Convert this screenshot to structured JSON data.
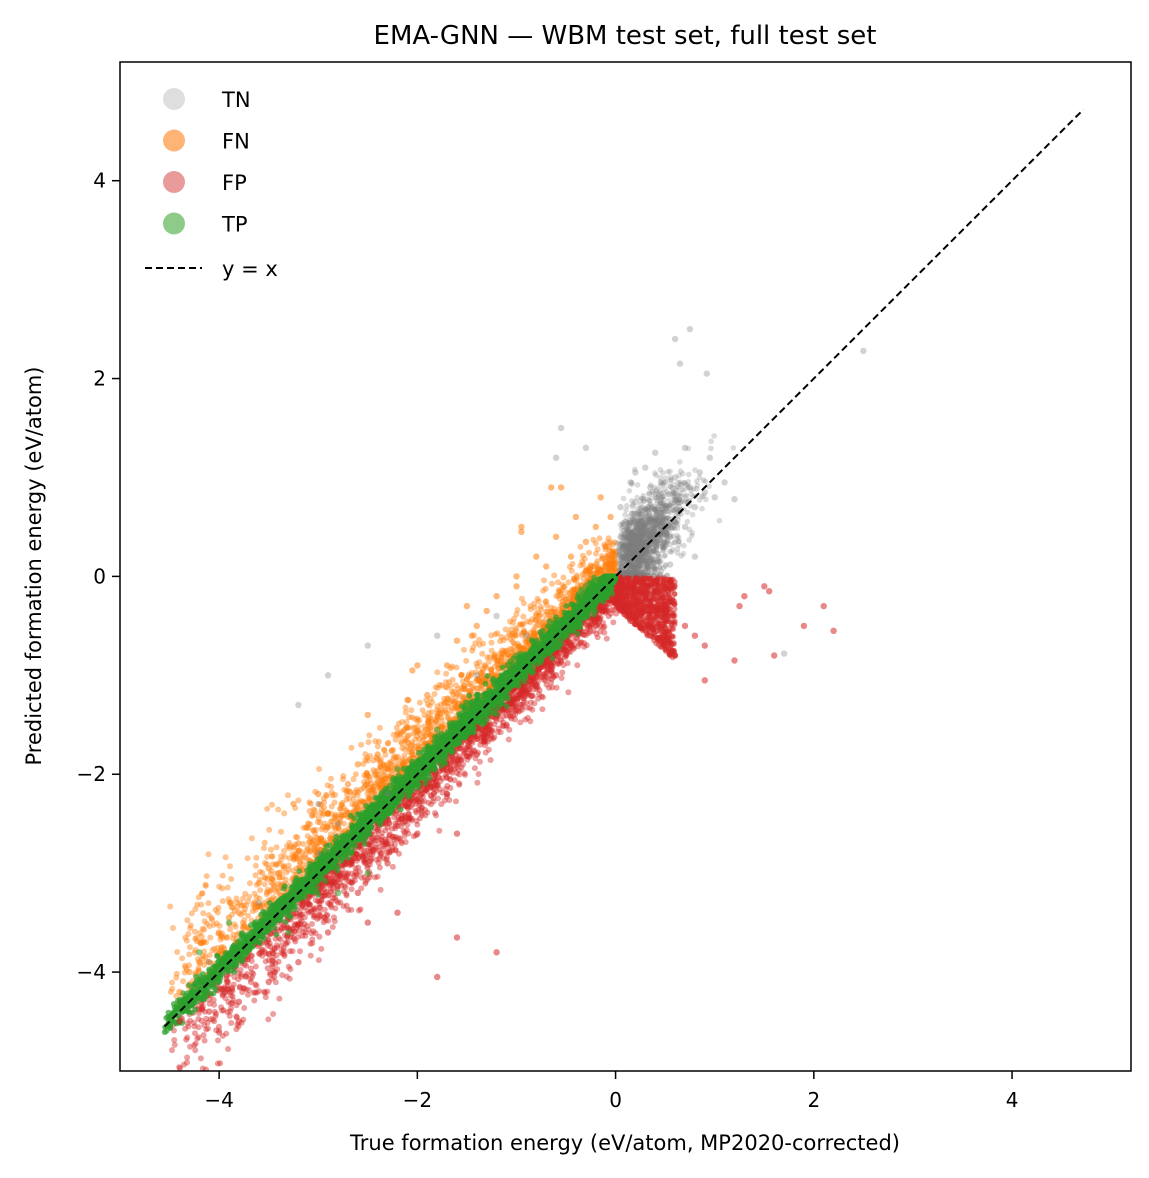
{
  "chart_data": {
    "type": "scatter",
    "title": "EMA-GNN — WBM test set, full test set",
    "xlabel": "True formation energy (eV/atom, MP2020-corrected)",
    "ylabel": "Predicted formation energy (eV/atom)",
    "xlim": [
      -5.0,
      5.2
    ],
    "ylim": [
      -5.0,
      5.2
    ],
    "xticks": [
      -4,
      -2,
      0,
      2,
      4
    ],
    "yticks": [
      -4,
      -2,
      0,
      2,
      4
    ],
    "xtick_labels": [
      "−4",
      "−2",
      "0",
      "2",
      "4"
    ],
    "ytick_labels": [
      "−4",
      "−2",
      "0",
      "2",
      "4"
    ],
    "grid": false,
    "legend": {
      "placement": "top-left",
      "entries": [
        {
          "label": "TN",
          "color": "#dedede",
          "marker": "circle"
        },
        {
          "label": "FN",
          "color": "#ffb375",
          "marker": "circle"
        },
        {
          "label": "FP",
          "color": "#e99a9b",
          "marker": "circle"
        },
        {
          "label": "TP",
          "color": "#8ecb88",
          "marker": "circle"
        },
        {
          "label": "y = x",
          "color": "#000000",
          "marker": "dashed-line"
        }
      ]
    },
    "reference_line": {
      "label": "y = x",
      "x": [
        -4.55,
        4.72
      ],
      "y": [
        -4.55,
        4.72
      ],
      "color": "#000000",
      "style": "dashed"
    },
    "series": [
      {
        "name": "TN",
        "color": "#7f7f7f",
        "description_points": [
          [
            0.05,
            0.05
          ],
          [
            0.1,
            0.2
          ],
          [
            0.2,
            0.1
          ],
          [
            0.15,
            0.35
          ],
          [
            0.3,
            0.25
          ],
          [
            0.25,
            0.5
          ],
          [
            0.4,
            0.45
          ],
          [
            0.35,
            0.15
          ],
          [
            0.5,
            0.3
          ],
          [
            0.45,
            0.6
          ],
          [
            0.55,
            0.4
          ],
          [
            0.6,
            0.55
          ],
          [
            0.7,
            0.5
          ],
          [
            0.65,
            0.75
          ],
          [
            0.8,
            0.7
          ],
          [
            0.75,
            0.9
          ],
          [
            0.9,
            0.85
          ],
          [
            1.0,
            0.8
          ],
          [
            0.2,
            0.75
          ],
          [
            0.35,
            0.9
          ],
          [
            0.5,
            0.95
          ],
          [
            0.1,
            0.55
          ],
          [
            0.05,
            0.4
          ],
          [
            0.3,
            1.1
          ],
          [
            0.6,
            1.0
          ],
          [
            0.85,
            1.05
          ],
          [
            1.1,
            0.95
          ],
          [
            1.2,
            0.78
          ],
          [
            0.4,
            1.25
          ],
          [
            0.7,
            1.3
          ],
          [
            0.95,
            1.2
          ],
          [
            0.6,
            2.4
          ],
          [
            0.75,
            2.5
          ],
          [
            0.65,
            2.15
          ],
          [
            0.92,
            2.05
          ],
          [
            2.5,
            2.28
          ],
          [
            0.05,
            0.7
          ],
          [
            0.15,
            0.95
          ],
          [
            -0.55,
            1.5
          ],
          [
            -0.3,
            1.3
          ],
          [
            -0.6,
            1.2
          ],
          [
            0.2,
            1.05
          ],
          [
            1.7,
            -0.78
          ],
          [
            -2.5,
            -0.7
          ],
          [
            -2.9,
            -1.0
          ],
          [
            -3.2,
            -1.3
          ],
          [
            -3.0,
            -2.3
          ],
          [
            -2.3,
            -2.2
          ],
          [
            -1.8,
            -0.6
          ],
          [
            -1.4,
            -1.0
          ],
          [
            -0.9,
            -0.6
          ],
          [
            -1.2,
            -0.4
          ],
          [
            -3.0,
            -2.8
          ],
          [
            -4.1,
            -3.9
          ],
          [
            -3.6,
            -3.3
          ],
          [
            -2.8,
            -2.5
          ],
          [
            0.45,
            0.02
          ],
          [
            0.55,
            0.12
          ],
          [
            0.25,
            0.02
          ],
          [
            0.8,
            0.2
          ]
        ]
      },
      {
        "name": "FN",
        "color": "#ff7f0e",
        "description_points": [
          [
            -0.05,
            0.6
          ],
          [
            -0.2,
            0.5
          ],
          [
            -0.1,
            0.3
          ],
          [
            -0.3,
            0.35
          ],
          [
            -0.4,
            0.6
          ],
          [
            -0.15,
            0.8
          ],
          [
            -0.55,
            0.9
          ],
          [
            -0.6,
            0.4
          ],
          [
            -0.8,
            0.2
          ],
          [
            -0.95,
            0.45
          ],
          [
            -1.0,
            -0.1
          ],
          [
            -1.2,
            -0.2
          ],
          [
            -1.4,
            -0.5
          ],
          [
            -1.5,
            -0.3
          ],
          [
            -1.7,
            -0.9
          ],
          [
            -1.9,
            -1.2
          ],
          [
            -2.0,
            -0.9
          ],
          [
            -2.2,
            -1.6
          ],
          [
            -2.4,
            -1.8
          ],
          [
            -2.5,
            -1.4
          ],
          [
            -2.7,
            -2.1
          ],
          [
            -2.9,
            -2.4
          ],
          [
            -3.0,
            -2.2
          ],
          [
            -3.2,
            -2.7
          ],
          [
            -3.4,
            -3.0
          ],
          [
            -3.6,
            -3.1
          ],
          [
            -3.8,
            -3.4
          ],
          [
            -4.0,
            -3.6
          ],
          [
            -4.2,
            -3.9
          ],
          [
            -4.4,
            -4.2
          ],
          [
            -0.95,
            0.5
          ],
          [
            -0.65,
            0.9
          ],
          [
            -1.45,
            -0.6
          ],
          [
            -2.05,
            -0.95
          ],
          [
            -3.25,
            -2.3
          ],
          [
            -1.0,
            0.0
          ],
          [
            -0.3,
            0.05
          ],
          [
            -0.1,
            0.15
          ],
          [
            -0.45,
            0.2
          ],
          [
            -0.7,
            0.1
          ],
          [
            -1.3,
            -0.35
          ],
          [
            -1.6,
            -0.65
          ],
          [
            -2.1,
            -1.25
          ],
          [
            -2.6,
            -1.9
          ],
          [
            -3.1,
            -2.5
          ],
          [
            -3.5,
            -2.95
          ],
          [
            -3.9,
            -3.45
          ],
          [
            -4.3,
            -4.0
          ]
        ]
      },
      {
        "name": "FP",
        "color": "#d62728",
        "description_points": [
          [
            0.05,
            -0.05
          ],
          [
            0.1,
            -0.2
          ],
          [
            0.2,
            -0.1
          ],
          [
            0.3,
            -0.3
          ],
          [
            0.4,
            -0.15
          ],
          [
            0.5,
            -0.4
          ],
          [
            0.55,
            -0.05
          ],
          [
            0.7,
            -0.5
          ],
          [
            0.8,
            -0.6
          ],
          [
            0.9,
            -0.7
          ],
          [
            1.25,
            -0.3
          ],
          [
            1.3,
            -0.2
          ],
          [
            1.5,
            -0.1
          ],
          [
            1.6,
            -0.8
          ],
          [
            2.1,
            -0.3
          ],
          [
            2.2,
            -0.55
          ],
          [
            1.9,
            -0.5
          ],
          [
            1.55,
            -0.15
          ],
          [
            0.9,
            -1.05
          ],
          [
            1.2,
            -0.85
          ],
          [
            -0.2,
            -0.5
          ],
          [
            -0.5,
            -0.8
          ],
          [
            -0.8,
            -1.1
          ],
          [
            -1.1,
            -1.5
          ],
          [
            -1.4,
            -1.8
          ],
          [
            -1.7,
            -2.2
          ],
          [
            -2.0,
            -2.6
          ],
          [
            -2.3,
            -2.9
          ],
          [
            -2.6,
            -3.2
          ],
          [
            -2.9,
            -3.6
          ],
          [
            -3.2,
            -3.9
          ],
          [
            -3.5,
            -4.1
          ],
          [
            -3.8,
            -4.3
          ],
          [
            -4.1,
            -4.4
          ],
          [
            -4.4,
            -4.5
          ],
          [
            -3.8,
            -4.5
          ],
          [
            -1.6,
            -3.65
          ],
          [
            -1.2,
            -3.8
          ],
          [
            -1.8,
            -4.05
          ],
          [
            -1.6,
            -2.6
          ],
          [
            -2.5,
            -3.5
          ],
          [
            -2.2,
            -3.4
          ],
          [
            0.15,
            -0.45
          ],
          [
            0.35,
            -0.6
          ],
          [
            0.6,
            -0.8
          ],
          [
            -0.1,
            -0.35
          ],
          [
            -0.6,
            -1.0
          ],
          [
            -1.0,
            -1.35
          ]
        ]
      },
      {
        "name": "TP",
        "color": "#2ca02c",
        "description_points": [
          [
            -0.02,
            -0.02
          ],
          [
            -0.1,
            -0.05
          ],
          [
            -0.2,
            -0.15
          ],
          [
            -0.35,
            -0.3
          ],
          [
            -0.5,
            -0.45
          ],
          [
            -0.7,
            -0.6
          ],
          [
            -0.9,
            -0.85
          ],
          [
            -1.1,
            -1.0
          ],
          [
            -1.3,
            -1.25
          ],
          [
            -1.5,
            -1.45
          ],
          [
            -1.7,
            -1.6
          ],
          [
            -1.9,
            -1.85
          ],
          [
            -2.1,
            -2.05
          ],
          [
            -2.3,
            -2.25
          ],
          [
            -2.5,
            -2.45
          ],
          [
            -2.7,
            -2.65
          ],
          [
            -2.9,
            -2.85
          ],
          [
            -3.1,
            -3.05
          ],
          [
            -3.3,
            -3.25
          ],
          [
            -3.5,
            -3.45
          ],
          [
            -3.7,
            -3.65
          ],
          [
            -3.9,
            -3.85
          ],
          [
            -4.1,
            -4.05
          ],
          [
            -4.3,
            -4.25
          ],
          [
            -4.5,
            -4.5
          ],
          [
            -4.2,
            -3.8
          ],
          [
            -3.9,
            -3.5
          ],
          [
            -2.5,
            -3.0
          ],
          [
            -2.8,
            -3.2
          ],
          [
            -3.3,
            -3.6
          ],
          [
            -0.3,
            -0.1
          ],
          [
            -0.6,
            -0.5
          ],
          [
            -1.0,
            -0.8
          ],
          [
            -1.4,
            -1.2
          ],
          [
            -1.8,
            -1.55
          ],
          [
            -2.2,
            -1.95
          ]
        ]
      }
    ]
  }
}
